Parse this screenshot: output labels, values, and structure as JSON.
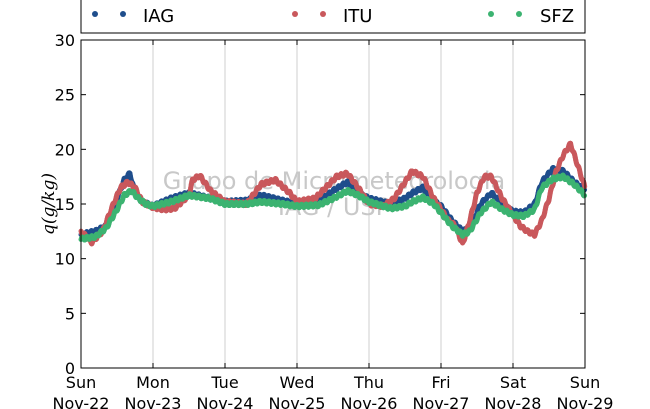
{
  "chart_data": {
    "type": "scatter",
    "title": "",
    "xlabel": "",
    "ylabel": "q(g/kg)",
    "ylim": [
      0,
      30
    ],
    "yticks": [
      0,
      5,
      10,
      15,
      20,
      25,
      30
    ],
    "xlim": [
      0,
      7
    ],
    "xtick_labels": [
      [
        "Sun",
        "Nov-22"
      ],
      [
        "Mon",
        "Nov-23"
      ],
      [
        "Tue",
        "Nov-24"
      ],
      [
        "Wed",
        "Nov-25"
      ],
      [
        "Thu",
        "Nov-26"
      ],
      [
        "Fri",
        "Nov-27"
      ],
      [
        "Sat",
        "Nov-28"
      ],
      [
        "Sun",
        "Nov-29"
      ]
    ],
    "x_unit": "days since Sun Nov-22 00:00",
    "grid": "vertical",
    "legend_position": "top",
    "watermark": [
      "Grupo de Micrometeorologia",
      "IAG / USP"
    ],
    "series": [
      {
        "name": "IAG",
        "color": "#1f4e8c",
        "x": [
          0,
          0.2,
          0.35,
          0.5,
          0.6,
          0.68,
          0.75,
          0.85,
          1.0,
          1.25,
          1.5,
          1.8,
          2.0,
          2.3,
          2.5,
          2.8,
          3.0,
          3.3,
          3.5,
          3.7,
          3.85,
          4.0,
          4.3,
          4.5,
          4.6,
          4.75,
          4.85,
          5.0,
          5.15,
          5.3,
          5.4,
          5.55,
          5.7,
          5.85,
          6.0,
          6.15,
          6.3,
          6.4,
          6.55,
          6.7,
          6.85,
          7.0
        ],
        "y": [
          12.2,
          12.5,
          13.0,
          15.5,
          17.2,
          17.8,
          16.0,
          15.2,
          14.8,
          15.5,
          16.0,
          15.5,
          15.2,
          15.3,
          15.8,
          15.3,
          15.0,
          15.2,
          16.2,
          17.0,
          16.0,
          15.5,
          15.0,
          15.5,
          16.0,
          16.5,
          15.5,
          14.8,
          13.5,
          12.5,
          12.8,
          15.0,
          16.0,
          15.0,
          14.3,
          14.2,
          15.0,
          17.0,
          18.2,
          18.0,
          17.0,
          16.3
        ]
      },
      {
        "name": "ITU",
        "color": "#c9585c",
        "x": [
          0,
          0.15,
          0.3,
          0.45,
          0.55,
          0.65,
          0.75,
          0.85,
          1.0,
          1.15,
          1.3,
          1.5,
          1.55,
          1.65,
          1.8,
          2.0,
          2.3,
          2.5,
          2.7,
          2.9,
          3.0,
          3.25,
          3.4,
          3.55,
          3.7,
          3.85,
          4.0,
          4.2,
          4.35,
          4.5,
          4.6,
          4.75,
          4.9,
          5.0,
          5.1,
          5.2,
          5.3,
          5.4,
          5.5,
          5.6,
          5.7,
          5.85,
          6.0,
          6.1,
          6.2,
          6.3,
          6.4,
          6.5,
          6.6,
          6.7,
          6.8,
          6.9,
          7.0
        ],
        "y": [
          12.5,
          11.5,
          12.5,
          15.0,
          16.5,
          17.0,
          16.5,
          15.2,
          14.7,
          14.5,
          14.6,
          15.8,
          17.2,
          17.6,
          16.2,
          15.2,
          15.0,
          16.8,
          17.2,
          16.0,
          15.2,
          15.5,
          16.5,
          17.5,
          17.8,
          16.5,
          15.0,
          14.8,
          15.5,
          17.0,
          18.0,
          17.5,
          15.5,
          14.5,
          13.5,
          13.0,
          11.3,
          13.5,
          16.0,
          17.5,
          17.5,
          15.5,
          14.0,
          13.0,
          12.5,
          12.2,
          13.5,
          15.5,
          18.0,
          19.5,
          20.5,
          18.5,
          16.5
        ]
      },
      {
        "name": "SFZ",
        "color": "#3cb371",
        "x": [
          0,
          0.2,
          0.35,
          0.5,
          0.6,
          0.7,
          0.8,
          0.9,
          1.0,
          1.25,
          1.5,
          1.8,
          2.0,
          2.3,
          2.5,
          2.8,
          3.0,
          3.3,
          3.5,
          3.7,
          3.85,
          4.0,
          4.3,
          4.5,
          4.6,
          4.75,
          4.9,
          5.0,
          5.15,
          5.3,
          5.4,
          5.55,
          5.7,
          5.85,
          6.0,
          6.15,
          6.3,
          6.4,
          6.55,
          6.7,
          6.85,
          7.0
        ],
        "y": [
          11.8,
          12.0,
          12.8,
          14.5,
          15.8,
          16.2,
          15.5,
          15.0,
          14.8,
          15.2,
          15.8,
          15.5,
          15.0,
          15.0,
          15.2,
          15.0,
          14.8,
          14.9,
          15.5,
          16.2,
          15.8,
          15.2,
          14.6,
          14.8,
          15.2,
          15.6,
          15.0,
          14.2,
          13.0,
          12.2,
          12.5,
          14.2,
          15.2,
          14.5,
          14.0,
          13.9,
          14.5,
          16.5,
          17.3,
          17.5,
          16.8,
          15.8
        ]
      }
    ]
  }
}
